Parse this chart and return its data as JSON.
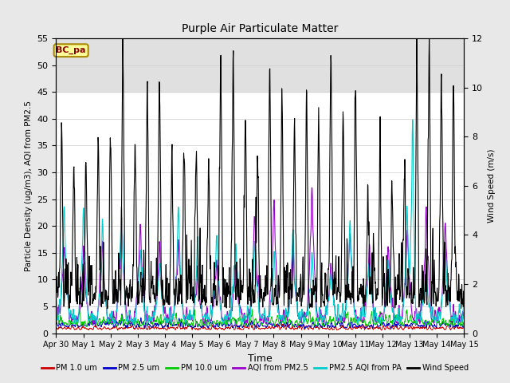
{
  "title": "Purple Air Particulate Matter",
  "ylabel_left": "Particle Density (ug/m3), AQI from PM2.5",
  "ylabel_right": "Wind Speed (m/s)",
  "xlabel": "Time",
  "ylim_left": [
    0,
    55
  ],
  "ylim_right": [
    0,
    12
  ],
  "yticks_left": [
    0,
    5,
    10,
    15,
    20,
    25,
    30,
    35,
    40,
    45,
    50,
    55
  ],
  "yticks_right": [
    0,
    2,
    4,
    6,
    8,
    10,
    12
  ],
  "annotation_text": "BC_pa",
  "bg_band_low": 45,
  "bg_band_high": 55,
  "legend_entries": [
    "PM 1.0 um",
    "PM 2.5 um",
    "PM 10.0 um",
    "AQI from PM2.5",
    "PM2.5 AQI from PA",
    "Wind Speed"
  ],
  "legend_colors": [
    "#cc0000",
    "#0000cc",
    "#00cc00",
    "#9900cc",
    "#00cccc",
    "#000000"
  ],
  "line_colors": {
    "pm1": "#cc0000",
    "pm25": "#0000cc",
    "pm10": "#00cc00",
    "aqi_pm25": "#9900cc",
    "aqi_pa": "#00cccc",
    "wind": "#000000"
  },
  "x_tick_labels": [
    "Apr 30",
    "May 1",
    "May 2",
    "May 3",
    "May 4",
    "May 5",
    "May 6",
    "May 7",
    "May 8",
    "May 9",
    "May 10",
    "May 11",
    "May 12",
    "May 13",
    "May 14",
    "May 15"
  ],
  "n_points": 1440,
  "n_days": 15,
  "background_color": "#e8e8e8",
  "plot_bg_color": "#ffffff",
  "grid_color": "#cccccc"
}
